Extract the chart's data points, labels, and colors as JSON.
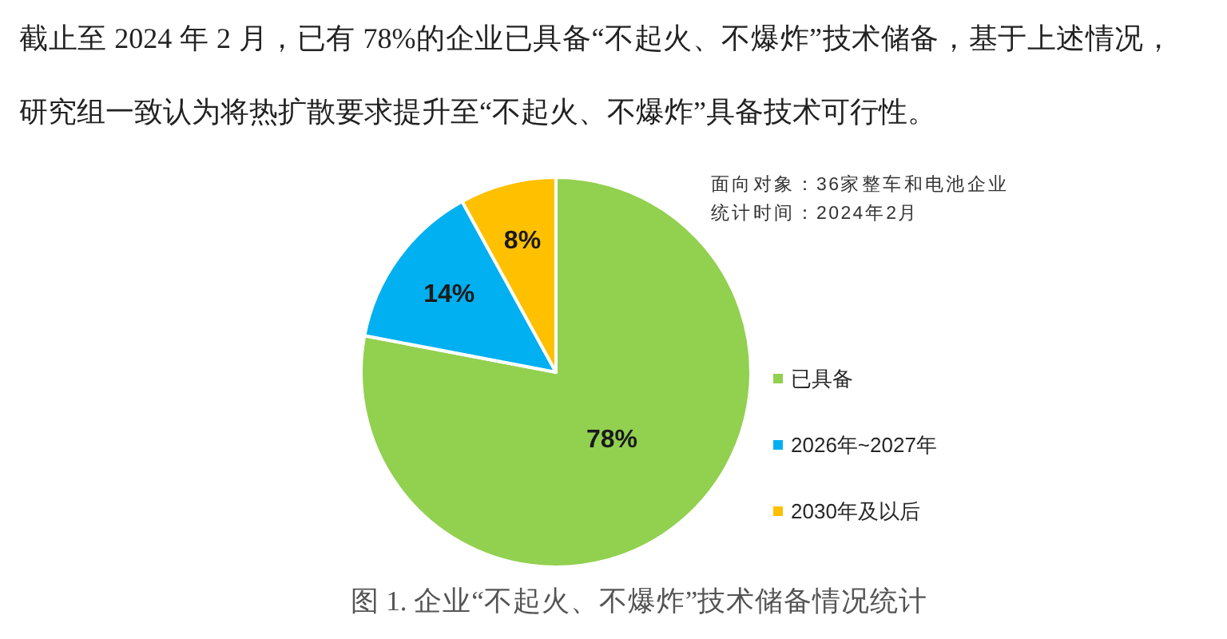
{
  "chart_data": {
    "type": "pie",
    "title": "图 1. 企业“不起火、不爆炸”技术储备情况统计",
    "annotations": [
      "截止至 2024 年 2 月，已有 78%的企业已具备“不起火、不爆炸”技术储备，基于上述情况，研究组一致认为将热扩散要求提升至“不起火、不爆炸”具备技术可行性。",
      "面向对象：36家整车和电池企业",
      "统计时间：2024年2月"
    ],
    "categories": [
      "已具备",
      "2026年~2027年",
      "2030年及以后"
    ],
    "values": [
      78,
      14,
      8
    ],
    "colors": [
      "#92d050",
      "#00b0f0",
      "#ffc000"
    ],
    "value_labels": [
      "78%",
      "14%",
      "8%"
    ],
    "legend": "right"
  }
}
